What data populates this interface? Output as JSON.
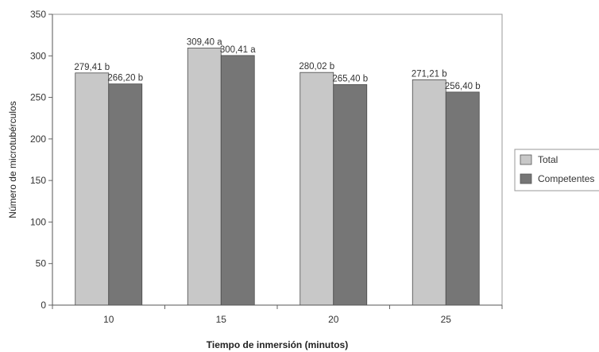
{
  "chart_data": {
    "type": "bar",
    "title": "",
    "xlabel": "Tiempo de inmersión (minutos)",
    "ylabel": "Número de microtubérculos",
    "ylim": [
      0,
      350
    ],
    "yticks": [
      0,
      50,
      100,
      150,
      200,
      250,
      300,
      350
    ],
    "categories": [
      "10",
      "15",
      "20",
      "25"
    ],
    "grid": false,
    "legend_position": "right",
    "series": [
      {
        "name": "Total",
        "color": "#c8c8c8",
        "values": [
          279.41,
          309.4,
          280.02,
          271.21
        ],
        "labels": [
          "279,41 b",
          "309,40 a",
          "280,02 b",
          "271,21 b"
        ]
      },
      {
        "name": "Competentes",
        "color": "#767676",
        "values": [
          266.2,
          300.41,
          265.4,
          256.4
        ],
        "labels": [
          "266,20 b",
          "300,41 a",
          "265,40 b",
          "256,40 b"
        ]
      }
    ]
  }
}
